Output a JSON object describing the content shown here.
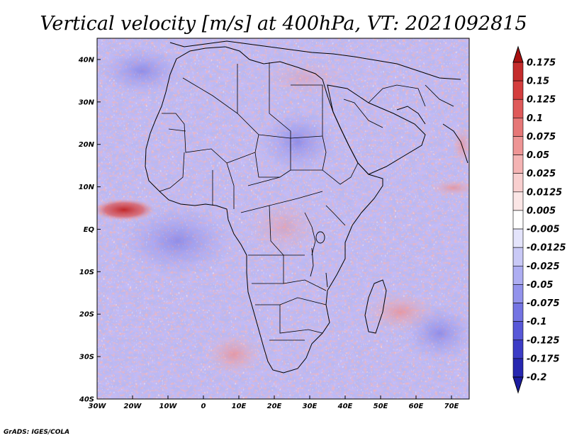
{
  "figure": {
    "title": "Vertical velocity [m/s] at 400hPa, VT: 2021092815",
    "credit": "GrADS: IGES/COLA",
    "variable": "Vertical velocity",
    "units": "m/s",
    "level": "400hPa",
    "valid_time": "2021092815"
  },
  "map": {
    "region": "Africa",
    "lon_range": [
      -30,
      75
    ],
    "lat_range": [
      -40,
      45
    ],
    "x_ticks": [
      {
        "value": -30,
        "label": "30W"
      },
      {
        "value": -20,
        "label": "20W"
      },
      {
        "value": -10,
        "label": "10W"
      },
      {
        "value": 0,
        "label": "0"
      },
      {
        "value": 10,
        "label": "10E"
      },
      {
        "value": 20,
        "label": "20E"
      },
      {
        "value": 30,
        "label": "30E"
      },
      {
        "value": 40,
        "label": "40E"
      },
      {
        "value": 50,
        "label": "50E"
      },
      {
        "value": 60,
        "label": "60E"
      },
      {
        "value": 70,
        "label": "70E"
      }
    ],
    "y_ticks": [
      {
        "value": 40,
        "label": "40N"
      },
      {
        "value": 30,
        "label": "30N"
      },
      {
        "value": 20,
        "label": "20N"
      },
      {
        "value": 10,
        "label": "10N"
      },
      {
        "value": 0,
        "label": "EQ"
      },
      {
        "value": -10,
        "label": "10S"
      },
      {
        "value": -20,
        "label": "20S"
      },
      {
        "value": -30,
        "label": "30S"
      },
      {
        "value": -40,
        "label": "40S"
      }
    ]
  },
  "colorbar": {
    "levels": [
      {
        "label": "0.175",
        "color": "#b51a1a"
      },
      {
        "label": "0.15",
        "color": "#c42c2c"
      },
      {
        "label": "0.125",
        "color": "#d43e3e"
      },
      {
        "label": "0.1",
        "color": "#df5a5a"
      },
      {
        "label": "0.075",
        "color": "#e67777"
      },
      {
        "label": "0.05",
        "color": "#ee9595"
      },
      {
        "label": "0.025",
        "color": "#f4b4b4"
      },
      {
        "label": "0.0125",
        "color": "#f8cfcf"
      },
      {
        "label": "0.005",
        "color": "#fbe6e6"
      },
      {
        "label": "-0.005",
        "color": "#ffffff"
      },
      {
        "label": "-0.0125",
        "color": "#e4e4fb"
      },
      {
        "label": "-0.025",
        "color": "#c9c9f6"
      },
      {
        "label": "-0.05",
        "color": "#aeaef2"
      },
      {
        "label": "-0.075",
        "color": "#9393ec"
      },
      {
        "label": "-0.1",
        "color": "#7474e3"
      },
      {
        "label": "-0.125",
        "color": "#5858d8"
      },
      {
        "label": "-0.175",
        "color": "#3c3cc6"
      },
      {
        "label": "-0.2",
        "color": "#2727b0"
      }
    ],
    "top_color": "#a81010",
    "bottom_color": "#1c1ca0"
  }
}
